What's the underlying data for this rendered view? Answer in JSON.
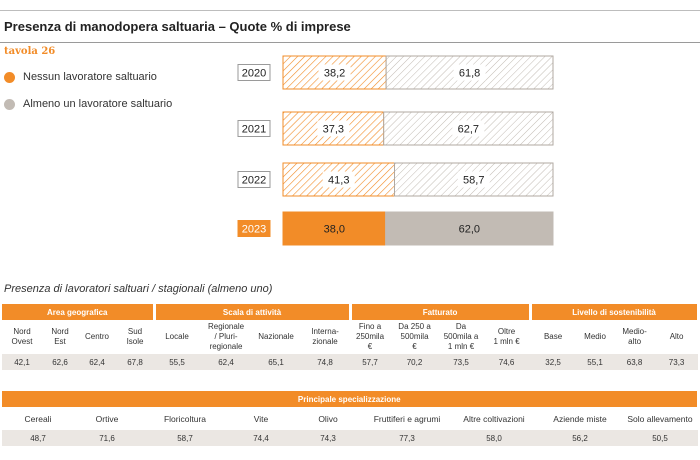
{
  "title": "Presenza di manodopera saltuaria  – Quote % di imprese",
  "tavola": "tavola 26",
  "colors": {
    "accent": "#f28c28",
    "secondary": "#c2bbb4",
    "value_bg": "#ebe7e3"
  },
  "chart_data": {
    "type": "bar",
    "stacked": "100%",
    "orientation": "horizontal",
    "categories": [
      "2020",
      "2021",
      "2022",
      "2023"
    ],
    "series": [
      {
        "name": "Nessun lavoratore saltuario",
        "values": [
          38.2,
          37.3,
          41.3,
          38.0
        ],
        "labels": [
          "38,2",
          "37,3",
          "41,3",
          "38,0"
        ]
      },
      {
        "name": "Almeno un lavoratore saltuario",
        "values": [
          61.8,
          62.7,
          58.7,
          62.0
        ],
        "labels": [
          "61,8",
          "62,7",
          "58,7",
          "62,0"
        ]
      }
    ],
    "xlim": [
      0,
      100
    ],
    "highlight_category": "2023",
    "legend_position": "top-left"
  },
  "legend": [
    {
      "label": "Nessun lavoratore saltuario",
      "color": "#f28c28"
    },
    {
      "label": "Almeno un lavoratore saltuario",
      "color": "#c2bbb4"
    }
  ],
  "subtitle": "Presenza di lavoratori saltuari / stagionali (almeno uno)",
  "table1": {
    "groups": [
      {
        "label": "Area geografica",
        "span": 4
      },
      {
        "label": "Scala di attività",
        "span": 4
      },
      {
        "label": "Fatturato",
        "span": 4
      },
      {
        "label": "Livello di sostenibilità",
        "span": 4
      }
    ],
    "columns": [
      "Nord\nOvest",
      "Nord\nEst",
      "Centro",
      "Sud\nIsole",
      "Locale",
      "Regionale\n/ Pluri-\nregionale",
      "Nazionale",
      "Interna-\nzionale",
      "Fino a\n250mila\n€",
      "Da 250 a\n500mila\n€",
      "Da\n500mila a\n1 mln €",
      "Oltre\n1 mln €",
      "Base",
      "Medio",
      "Medio-\nalto",
      "Alto"
    ],
    "values": [
      "42,1",
      "62,6",
      "62,4",
      "67,8",
      "55,5",
      "62,4",
      "65,1",
      "74,8",
      "57,7",
      "70,2",
      "73,5",
      "74,6",
      "32,5",
      "55,1",
      "63,8",
      "73,3"
    ]
  },
  "table2": {
    "header": "Principale specializzazione",
    "columns": [
      "Cereali",
      "Ortive",
      "Floricoltura",
      "Vite",
      "Olivo",
      "Fruttiferi e agrumi",
      "Altre coltivazioni",
      "Aziende miste",
      "Solo allevamento"
    ],
    "values": [
      "48,7",
      "71,6",
      "58,7",
      "74,4",
      "74,3",
      "77,3",
      "58,0",
      "56,2",
      "50,5"
    ]
  }
}
